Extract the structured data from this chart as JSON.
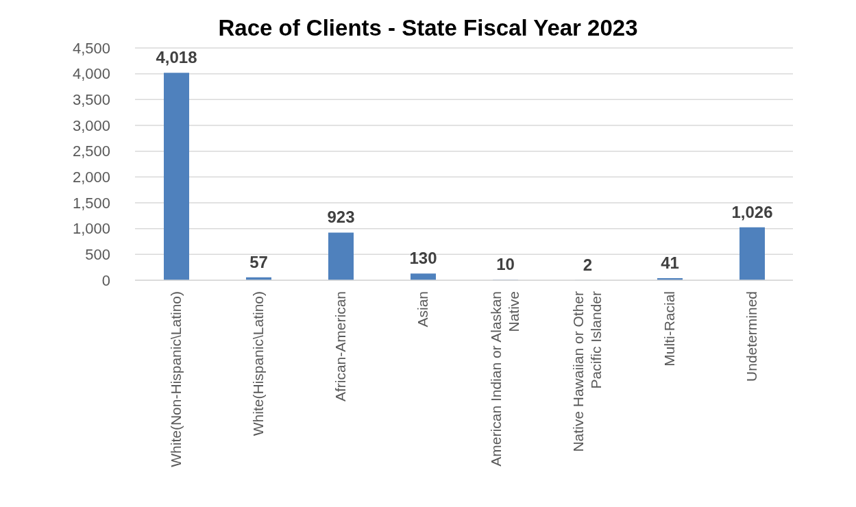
{
  "chart_data": {
    "type": "bar",
    "title": "Race of Clients - State Fiscal Year 2023",
    "categories": [
      "White(Non-Hispanic\\Latino)",
      "White(Hispanic\\Latino)",
      "African-American",
      "Asian",
      "American Indian or Alaskan Native",
      "Native Hawaiian or Other Pacific Islander",
      "Multi-Racial",
      "Undetermined"
    ],
    "values": [
      4018,
      57,
      923,
      130,
      10,
      2,
      41,
      1026
    ],
    "color": "#4f81bd",
    "value_labels": [
      "4,018",
      "57",
      "923",
      "130",
      "10",
      "2",
      "41",
      "1,026"
    ],
    "ylim": [
      0,
      4500
    ],
    "yticks": [
      0,
      500,
      {
        "value": 1000,
        "label": "1,000"
      },
      {
        "value": 1500,
        "label": "1,500"
      },
      {
        "value": 2000,
        "label": "2,000"
      },
      {
        "value": 2500,
        "label": "2,500"
      },
      {
        "value": 3000,
        "label": "3,000"
      },
      {
        "value": 3500,
        "label": "3,500"
      },
      {
        "value": 4000,
        "label": "4,000"
      },
      {
        "value": 4500,
        "label": "4,500"
      }
    ],
    "grid": "y"
  }
}
